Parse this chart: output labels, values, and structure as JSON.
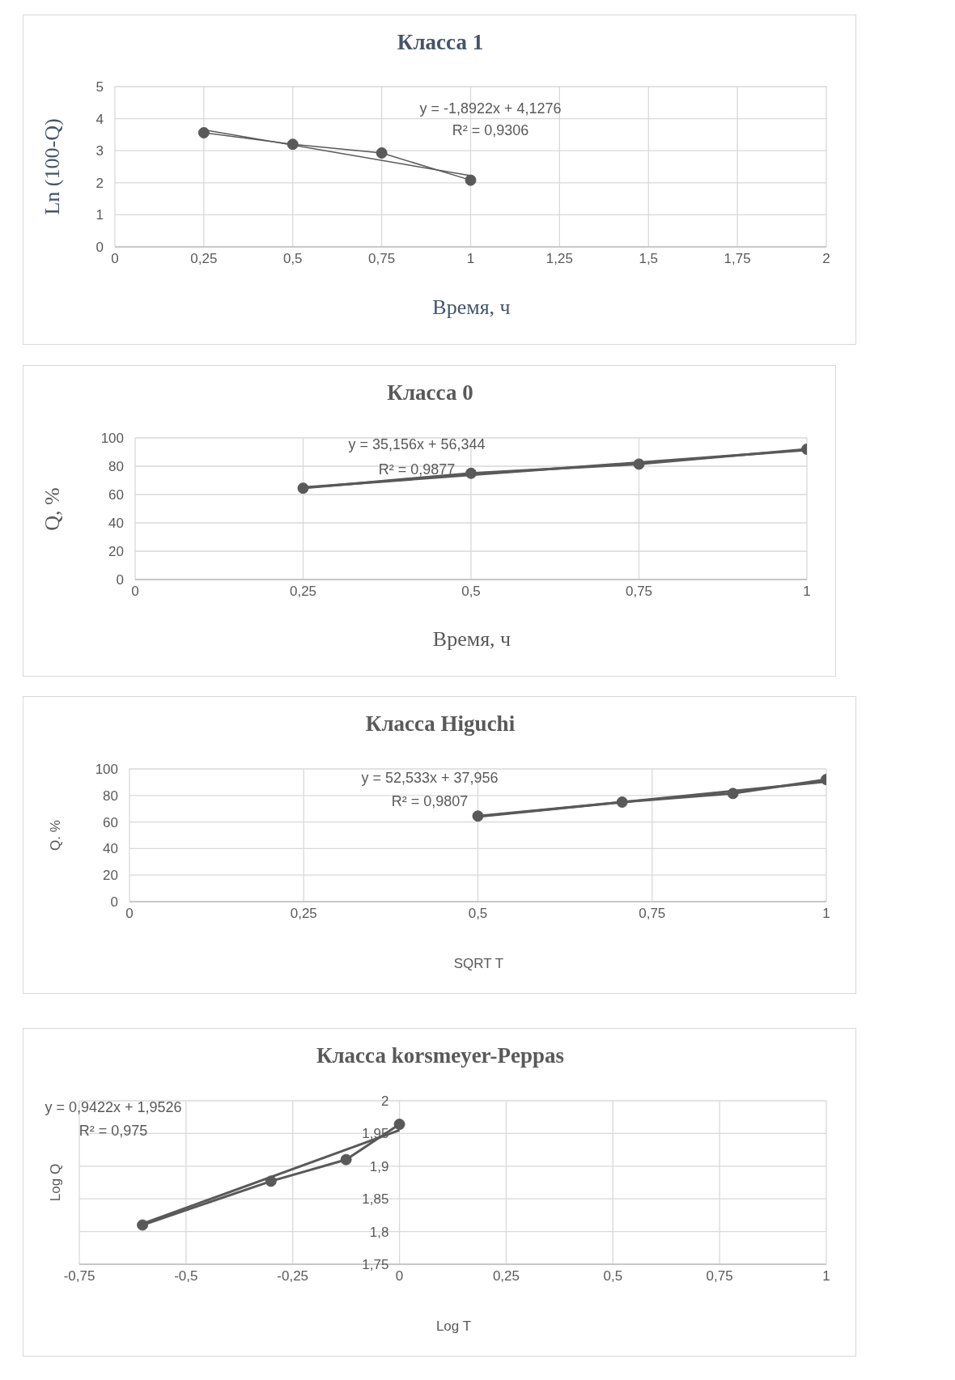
{
  "chart_data": [
    {
      "type": "line",
      "title": "Класса 1",
      "xlabel": "Время, ч",
      "ylabel": "Ln (100-Q)",
      "annotations": [
        "y = -1,8922x + 4,1276",
        "R² = 0,9306"
      ],
      "xlim": [
        0,
        2
      ],
      "xticks": [
        0,
        {
          "value": 0.25,
          "label": "0,25"
        },
        {
          "value": 0.5,
          "label": "0,5"
        },
        {
          "value": 0.75,
          "label": "0,75"
        },
        1,
        {
          "value": 1.25,
          "label": "1,25"
        },
        {
          "value": 1.5,
          "label": "1,5"
        },
        {
          "value": 1.75,
          "label": "1,75"
        },
        2
      ],
      "ylim": [
        0,
        5
      ],
      "yticks": [
        0,
        1,
        2,
        3,
        4,
        5
      ],
      "grid": true,
      "legend": false,
      "series": [
        {
          "color": "#595959",
          "marker": "circle",
          "x": [
            0.25,
            0.5,
            0.75,
            1
          ],
          "values": [
            3.56,
            3.2,
            2.93,
            2.08
          ]
        },
        {
          "color": "#595959",
          "marker": "none",
          "x": [
            0.25,
            1
          ],
          "values": [
            3.65,
            2.22
          ]
        }
      ]
    },
    {
      "type": "line",
      "title": "Класса 0",
      "xlabel": "Время, ч",
      "ylabel": "Q, %",
      "annotations": [
        "y = 35,156x + 56,344",
        "R² = 0,9877"
      ],
      "xlim": [
        0,
        1
      ],
      "xticks": [
        0,
        {
          "value": 0.25,
          "label": "0,25"
        },
        {
          "value": 0.5,
          "label": "0,5"
        },
        {
          "value": 0.75,
          "label": "0,75"
        },
        1
      ],
      "ylim": [
        0,
        100
      ],
      "yticks": [
        0,
        20,
        40,
        60,
        80,
        100
      ],
      "grid": true,
      "legend": false,
      "series": [
        {
          "color": "#595959",
          "marker": "circle",
          "x": [
            0.25,
            0.5,
            0.75,
            1
          ],
          "values": [
            64.5,
            75,
            81.5,
            92
          ]
        },
        {
          "color": "#595959",
          "marker": "none",
          "x": [
            0.25,
            1
          ],
          "values": [
            65,
            91.5
          ]
        }
      ]
    },
    {
      "type": "line",
      "title": "Класса Higuchi",
      "xlabel": "SQRT T",
      "ylabel": "Q. %",
      "annotations": [
        "y = 52,533x + 37,956",
        "R² = 0,9807"
      ],
      "xlim": [
        0,
        1
      ],
      "xticks": [
        0,
        {
          "value": 0.25,
          "label": "0,25"
        },
        {
          "value": 0.5,
          "label": "0,5"
        },
        {
          "value": 0.75,
          "label": "0,75"
        },
        1
      ],
      "ylim": [
        0,
        100
      ],
      "yticks": [
        0,
        20,
        40,
        60,
        80,
        100
      ],
      "grid": true,
      "legend": false,
      "series": [
        {
          "color": "#595959",
          "marker": "circle",
          "x": [
            0.5,
            0.707,
            0.866,
            1
          ],
          "values": [
            64.5,
            75,
            81.5,
            92
          ]
        },
        {
          "color": "#595959",
          "marker": "none",
          "x": [
            0.5,
            1
          ],
          "values": [
            64,
            90.5
          ]
        }
      ]
    },
    {
      "type": "line",
      "title": "Класса korsmeyer-Peppas",
      "xlabel": "Log T",
      "ylabel": "Log Q",
      "annotations": [
        "y = 0,9422x + 1,9526",
        "R² = 0,975"
      ],
      "xlim": [
        -0.75,
        1
      ],
      "xticks": [
        {
          "value": -0.75,
          "label": "-0,75"
        },
        {
          "value": -0.5,
          "label": "-0,5"
        },
        {
          "value": -0.25,
          "label": "-0,25"
        },
        0,
        {
          "value": 0.25,
          "label": "0,25"
        },
        {
          "value": 0.5,
          "label": "0,5"
        },
        {
          "value": 0.75,
          "label": "0,75"
        },
        1
      ],
      "ylim": [
        1.75,
        2
      ],
      "yticks": [
        {
          "value": 1.75,
          "label": "1,75"
        },
        {
          "value": 1.8,
          "label": "1,8"
        },
        {
          "value": 1.85,
          "label": "1,85"
        },
        {
          "value": 1.9,
          "label": "1,9"
        },
        {
          "value": 1.95,
          "label": "1,95"
        },
        2
      ],
      "grid": true,
      "legend": false,
      "series": [
        {
          "color": "#595959",
          "marker": "circle",
          "x": [
            -0.602,
            -0.301,
            -0.125,
            0
          ],
          "values": [
            1.81,
            1.877,
            1.91,
            1.964
          ]
        },
        {
          "color": "#595959",
          "marker": "none",
          "x": [
            -0.602,
            0
          ],
          "values": [
            1.812,
            1.955
          ]
        }
      ]
    }
  ]
}
